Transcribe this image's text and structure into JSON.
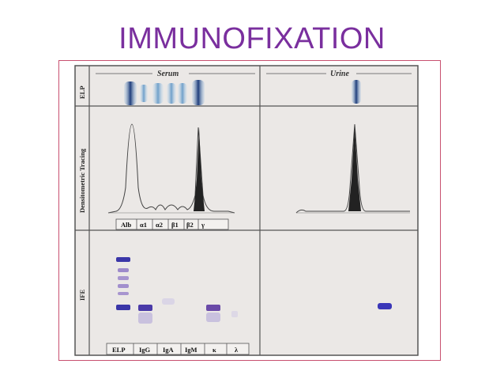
{
  "slide": {
    "title": "IMMUNOFIXATION",
    "title_color": "#7a2f9e",
    "frame_color": "#c85070"
  },
  "panel": {
    "row_labels": {
      "elp": "ELP",
      "tracing": "Densitometric Tracing",
      "ife": "IFE"
    },
    "columns": {
      "serum": "Serum",
      "urine": "Urine"
    },
    "fraction_labels": [
      "Alb",
      "α1",
      "α2",
      "β1",
      "β2",
      "γ"
    ],
    "lane_labels": [
      "ELP",
      "IgG",
      "IgA",
      "IgM",
      "κ",
      "λ"
    ],
    "band_color": "#4a3aa8",
    "elp_band_color": "#1e3c7a"
  }
}
